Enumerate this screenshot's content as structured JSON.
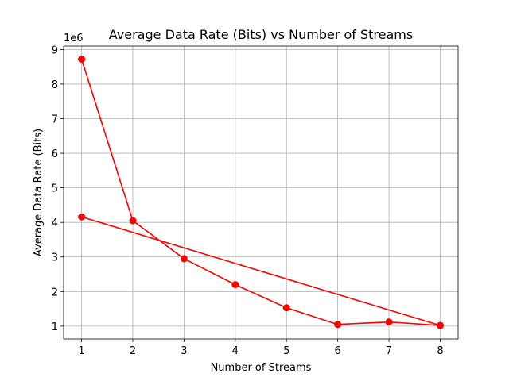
{
  "chart_data": {
    "type": "line",
    "title": "Average Data Rate (Bits) vs Number of Streams",
    "xlabel": "Number of Streams",
    "ylabel": "Average Data Rate (Bits)",
    "y_offset_label": "1e6",
    "xlim": [
      0.65,
      8.35
    ],
    "ylim": [
      0.63,
      9.1
    ],
    "x_ticks": [
      1,
      2,
      3,
      4,
      5,
      6,
      7,
      8
    ],
    "y_ticks": [
      1,
      2,
      3,
      4,
      5,
      6,
      7,
      8,
      9
    ],
    "y_tick_labels": [
      "1",
      "2",
      "3",
      "4",
      "5",
      "6",
      "7",
      "8",
      "9"
    ],
    "x_tick_labels": [
      "1",
      "2",
      "3",
      "4",
      "5",
      "6",
      "7",
      "8"
    ],
    "grid": true,
    "series": [
      {
        "color": "#ff0000",
        "marker": "circle",
        "x": [
          1,
          2,
          3,
          4,
          5,
          6,
          7,
          8,
          1
        ],
        "y": [
          8.72,
          4.05,
          2.95,
          2.2,
          1.53,
          1.05,
          1.12,
          1.02,
          4.16
        ]
      }
    ]
  }
}
